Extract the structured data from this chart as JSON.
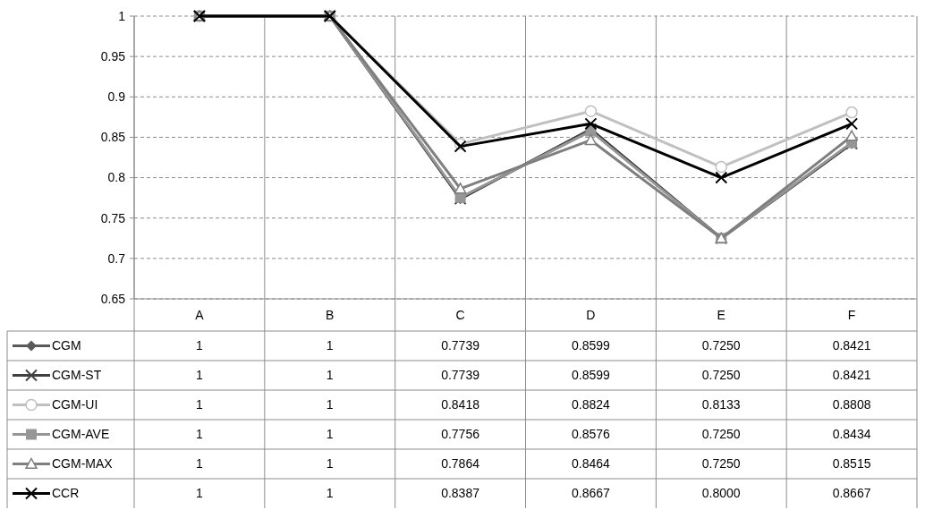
{
  "chart_data": {
    "type": "line",
    "categories": [
      "A",
      "B",
      "C",
      "D",
      "E",
      "F"
    ],
    "ylim": [
      0.65,
      1
    ],
    "yticks": [
      0.65,
      0.7,
      0.75,
      0.8,
      0.85,
      0.9,
      0.95,
      1
    ],
    "grid": true,
    "legend": "left",
    "line_style": "solid",
    "series": [
      {
        "name": "CGM",
        "color": "#595959",
        "marker": "diamond",
        "values": [
          1,
          1,
          0.7739,
          0.8599,
          0.725,
          0.8421
        ],
        "value_labels": [
          "1",
          "1",
          "0.7739",
          "0.8599",
          "0.7250",
          "0.8421"
        ]
      },
      {
        "name": "CGM-ST",
        "color": "#404040",
        "marker": "cross",
        "values": [
          1,
          1,
          0.7739,
          0.8599,
          0.725,
          0.8421
        ],
        "value_labels": [
          "1",
          "1",
          "0.7739",
          "0.8599",
          "0.7250",
          "0.8421"
        ]
      },
      {
        "name": "CGM-UI",
        "color": "#c0c0c0",
        "marker": "circle",
        "values": [
          1,
          1,
          0.8418,
          0.8824,
          0.8133,
          0.8808
        ],
        "value_labels": [
          "1",
          "1",
          "0.8418",
          "0.8824",
          "0.8133",
          "0.8808"
        ]
      },
      {
        "name": "CGM-AVE",
        "color": "#969696",
        "marker": "square",
        "values": [
          1,
          1,
          0.7756,
          0.8576,
          0.725,
          0.8434
        ],
        "value_labels": [
          "1",
          "1",
          "0.7756",
          "0.8576",
          "0.7250",
          "0.8434"
        ]
      },
      {
        "name": "CGM-MAX",
        "color": "#7f7f7f",
        "marker": "triangle",
        "values": [
          1,
          1,
          0.7864,
          0.8464,
          0.725,
          0.8515
        ],
        "value_labels": [
          "1",
          "1",
          "0.7864",
          "0.8464",
          "0.7250",
          "0.8515"
        ]
      },
      {
        "name": "CCR",
        "color": "#000000",
        "marker": "cross",
        "values": [
          1,
          1,
          0.8387,
          0.8667,
          0.8,
          0.8667
        ],
        "value_labels": [
          "1",
          "1",
          "0.8387",
          "0.8667",
          "0.8000",
          "0.8667"
        ]
      }
    ]
  }
}
